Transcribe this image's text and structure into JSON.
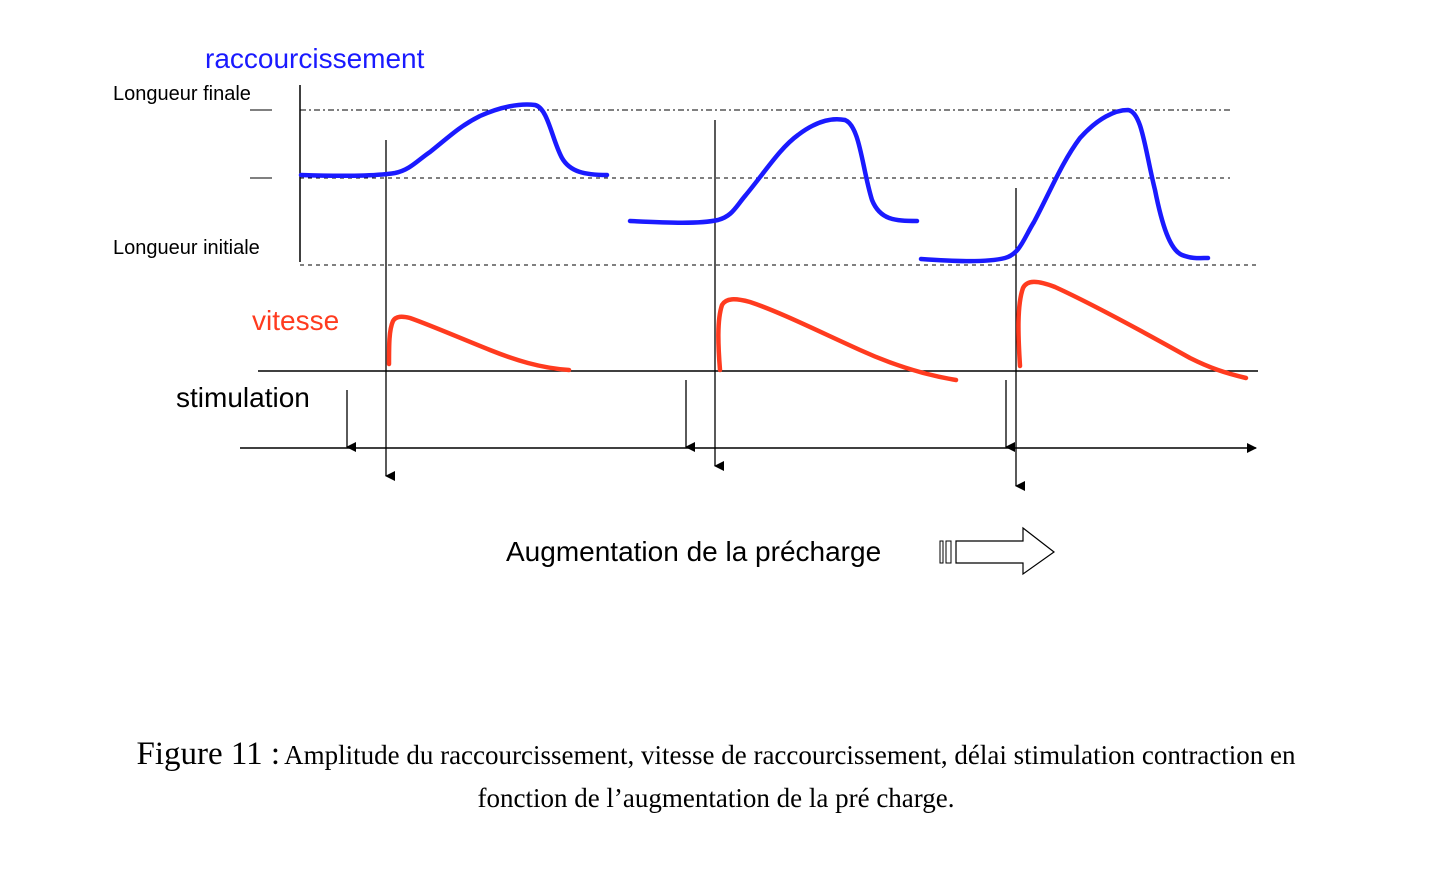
{
  "labels": {
    "raccourcissement": "raccourcissement",
    "longueur_finale": "Longueur finale",
    "longueur_initiale": "Longueur initiale",
    "vitesse": "vitesse",
    "stimulation": "stimulation",
    "augmentation": "Augmentation  de la précharge"
  },
  "caption": {
    "figure": "Figure 11 :",
    "line1": "Amplitude du raccourcissement, vitesse de raccourcissement, délai stimulation contraction en",
    "line2": "fonction de l’augmentation de la pré charge."
  },
  "colors": {
    "shortening": "#1a1aff",
    "speed": "#ff3b1f",
    "axes": "#000000"
  }
}
